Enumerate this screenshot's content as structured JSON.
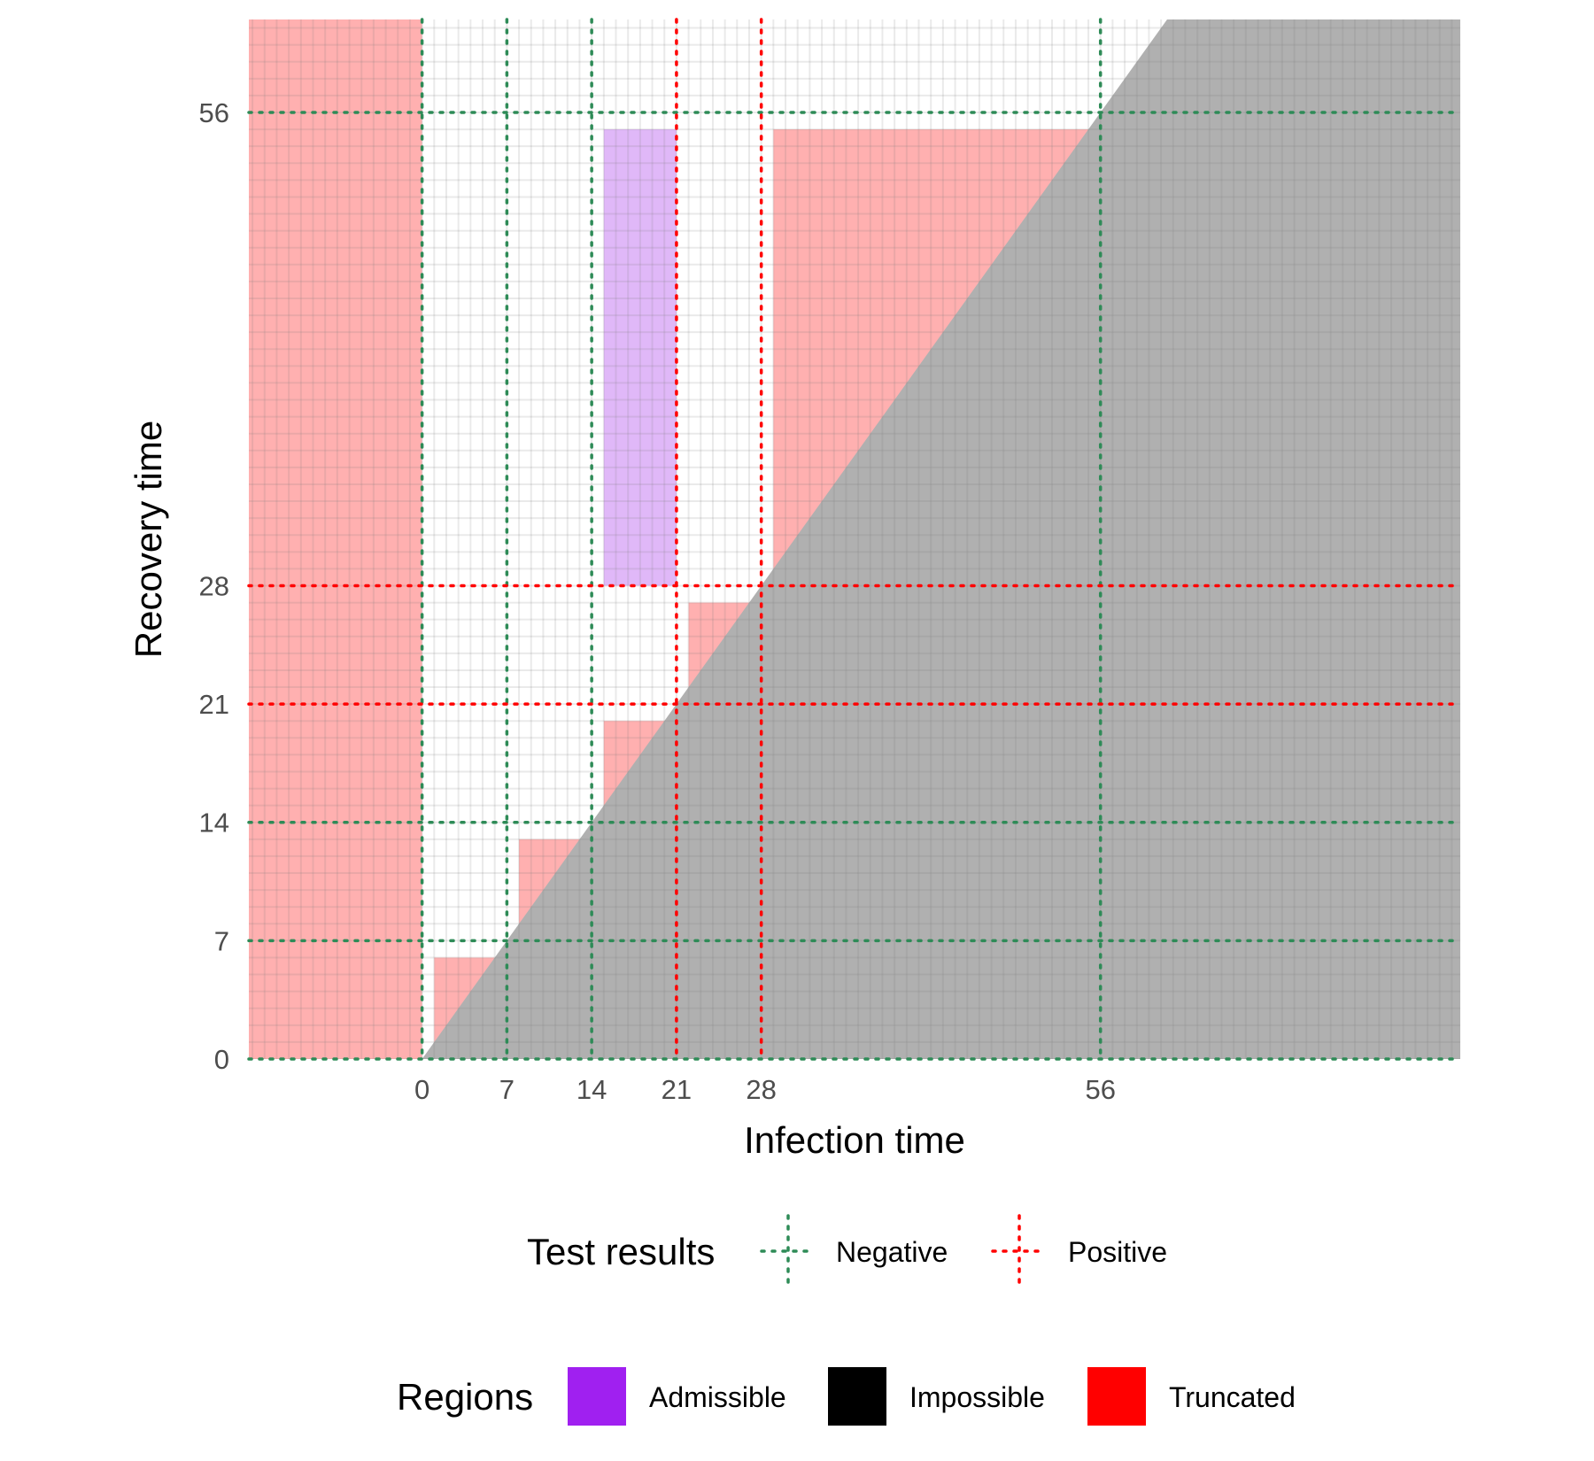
{
  "chart_data": {
    "type": "region-plot",
    "xlabel": "Infection time",
    "ylabel": "Recovery time",
    "xlim": [
      -14.3,
      85.7
    ],
    "ylim": [
      0,
      61.5
    ],
    "x_ticks": [
      0,
      7,
      14,
      21,
      28,
      56
    ],
    "y_ticks": [
      0,
      7,
      14,
      21,
      28,
      56
    ],
    "minor_grid_step": 1,
    "test_results": {
      "negative_times": [
        0,
        7,
        14,
        56
      ],
      "positive_times": [
        21,
        28
      ]
    },
    "regions": {
      "impossible": {
        "polygon": [
          [
            0,
            0
          ],
          [
            85.7,
            0
          ],
          [
            85.7,
            61.5
          ],
          [
            61.5,
            61.5
          ]
        ],
        "description": "recovery before infection"
      },
      "admissible": [
        {
          "x": [
            15,
            21
          ],
          "y": [
            28,
            55
          ]
        }
      ],
      "truncated": [
        {
          "x": [
            -14.3,
            0
          ],
          "y": [
            0,
            61.5
          ]
        },
        {
          "x": [
            1,
            6
          ],
          "y": [
            0,
            6
          ]
        },
        {
          "x": [
            8,
            13
          ],
          "y": [
            0,
            13
          ]
        },
        {
          "x": [
            15,
            20
          ],
          "y": [
            0,
            20
          ]
        },
        {
          "x": [
            22,
            27
          ],
          "y": [
            0,
            27
          ]
        },
        {
          "x": [
            29,
            55
          ],
          "y": [
            0,
            55
          ]
        }
      ]
    },
    "legends": {
      "test_results": {
        "title": "Test results",
        "items": [
          {
            "label": "Negative",
            "color": "#2e8b57"
          },
          {
            "label": "Positive",
            "color": "#ff0000"
          }
        ]
      },
      "regions": {
        "title": "Regions",
        "items": [
          {
            "label": "Admissible",
            "color": "#a020f0"
          },
          {
            "label": "Impossible",
            "color": "#000000"
          },
          {
            "label": "Truncated",
            "color": "#ff0000"
          }
        ]
      }
    },
    "colors": {
      "negative": "#2e8b57",
      "positive": "#ff0000",
      "admissible_fill": "#e0b8f8",
      "truncated_fill": "#ffb0b0",
      "impossible_fill": "#b0b0b0",
      "grid": "#ececec",
      "tick_text": "#4d4d4d"
    }
  }
}
